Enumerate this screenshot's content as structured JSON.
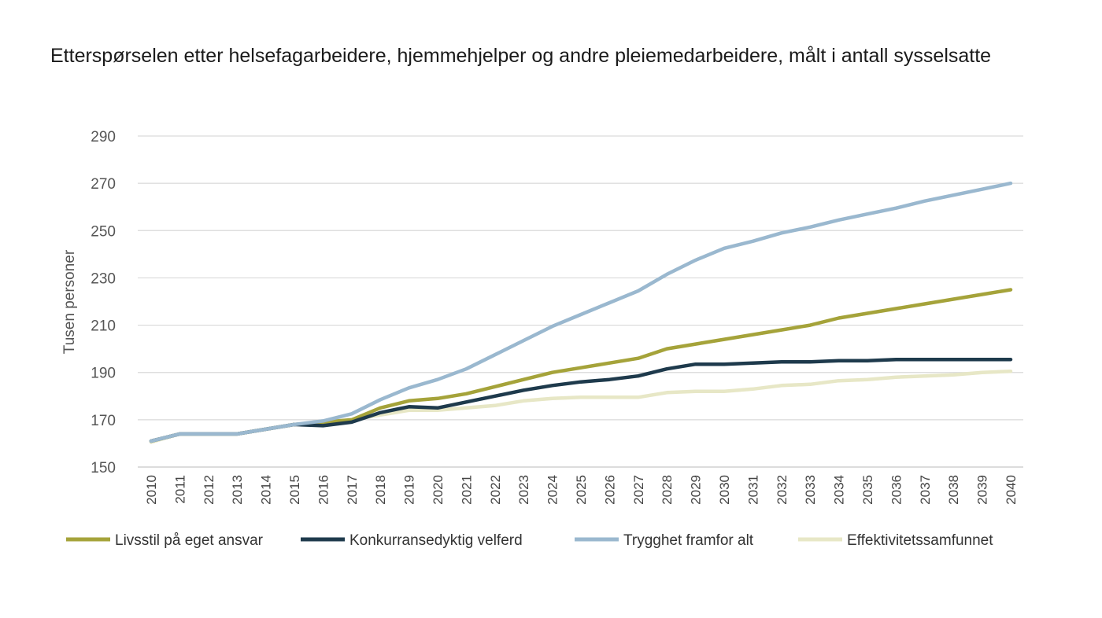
{
  "chart_data": {
    "type": "line",
    "title": "Etterspørselen etter helsefagarbeidere, hjemmehjelper og andre pleiemedarbeidere, målt i antall sysselsatte",
    "ylabel": "Tusen personer",
    "xlabel": "",
    "ylim": [
      150,
      290
    ],
    "yticks": [
      150,
      170,
      190,
      210,
      230,
      250,
      270,
      290
    ],
    "grid": true,
    "legend_position": "bottom",
    "x": [
      "2010",
      "2011",
      "2012",
      "2013",
      "2014",
      "2015",
      "2016",
      "2017",
      "2018",
      "2019",
      "2020",
      "2021",
      "2022",
      "2023",
      "2024",
      "2025",
      "2026",
      "2027",
      "2028",
      "2029",
      "2030",
      "2031",
      "2032",
      "2033",
      "2034",
      "2035",
      "2036",
      "2037",
      "2038",
      "2039",
      "2040"
    ],
    "series": [
      {
        "name": "Livsstil på eget ansvar",
        "color": "#a5a33a",
        "values": [
          161,
          164,
          164,
          164,
          166,
          168,
          169,
          170,
          175,
          178,
          179,
          181,
          184,
          187,
          190,
          192,
          194,
          196,
          200,
          202,
          204,
          206,
          208,
          210,
          213,
          215,
          217,
          219,
          221,
          223,
          225
        ]
      },
      {
        "name": "Konkurransedyktig velferd",
        "color": "#1e3a4c",
        "values": [
          161,
          164,
          164,
          164,
          166,
          168,
          167.5,
          169,
          173,
          175.5,
          175,
          177.5,
          180,
          182.5,
          184.5,
          186,
          187,
          188.5,
          191.5,
          193.5,
          193.5,
          194,
          194.5,
          194.5,
          195,
          195,
          195.5,
          195.5,
          195.5,
          195.5,
          195.5
        ]
      },
      {
        "name": "Trygghet framfor alt",
        "color": "#9ab8cf",
        "values": [
          161,
          164,
          164,
          164,
          166,
          168,
          169.5,
          172.5,
          178.5,
          183.5,
          187,
          191.5,
          197.5,
          203.5,
          209.5,
          214.5,
          219.5,
          224.5,
          231.5,
          237.5,
          242.5,
          245.5,
          249,
          251.5,
          254.5,
          257,
          259.5,
          262.5,
          265,
          267.5,
          270
        ]
      },
      {
        "name": "Effektivitetssamfunnet",
        "color": "#e7e7c6",
        "values": [
          160.5,
          164,
          164,
          164,
          166,
          168,
          168.5,
          170,
          172,
          174,
          174,
          175,
          176,
          178,
          179,
          179.5,
          179.5,
          179.5,
          181.5,
          182,
          182,
          183,
          184.5,
          185,
          186.5,
          187,
          188,
          188.5,
          189,
          190,
          190.5
        ]
      }
    ]
  }
}
